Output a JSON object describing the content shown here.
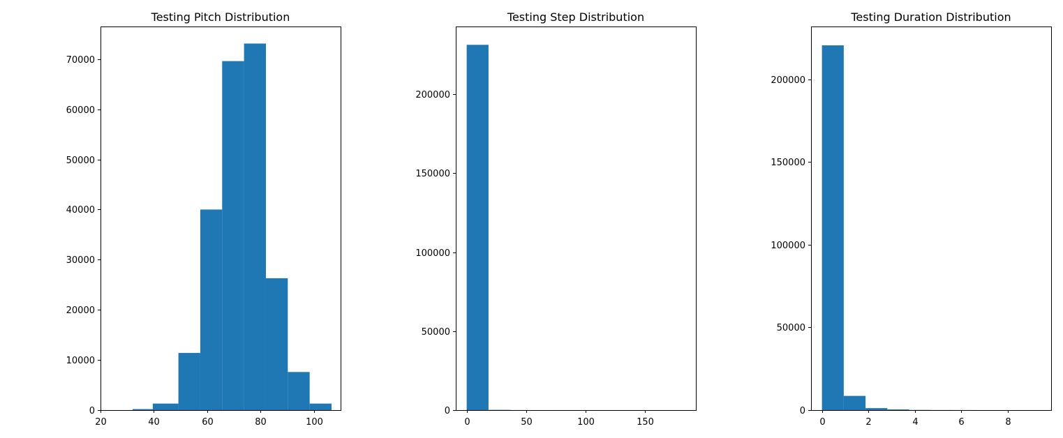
{
  "chart_data": [
    {
      "type": "bar",
      "title": "Testing Pitch Distribution",
      "xlabel": "",
      "ylabel": "",
      "xlim": [
        20,
        110
      ],
      "ylim": [
        0,
        76500
      ],
      "xticks": [
        20,
        40,
        60,
        80,
        100
      ],
      "yticks": [
        0,
        10000,
        20000,
        30000,
        40000,
        50000,
        60000,
        70000
      ],
      "bins": [
        {
          "x0": 32.0,
          "x1": 39.6,
          "value": 200
        },
        {
          "x0": 39.6,
          "x1": 49.2,
          "value": 1300
        },
        {
          "x0": 49.2,
          "x1": 57.4,
          "value": 11400
        },
        {
          "x0": 57.4,
          "x1": 65.6,
          "value": 40000
        },
        {
          "x0": 65.6,
          "x1": 73.8,
          "value": 69600
        },
        {
          "x0": 73.8,
          "x1": 82.0,
          "value": 73100
        },
        {
          "x0": 82.0,
          "x1": 90.2,
          "value": 26300
        },
        {
          "x0": 90.2,
          "x1": 98.4,
          "value": 7600
        },
        {
          "x0": 98.4,
          "x1": 106.6,
          "value": 1300
        }
      ],
      "color": "#1f77b4",
      "grid": false
    },
    {
      "type": "bar",
      "title": "Testing Step Distribution",
      "xlabel": "",
      "ylabel": "",
      "xlim": [
        -9.2,
        193.2
      ],
      "ylim": [
        0,
        243000
      ],
      "xticks": [
        0,
        50,
        100,
        150
      ],
      "yticks": [
        0,
        50000,
        100000,
        150000,
        200000
      ],
      "bins": [
        {
          "x0": 0,
          "x1": 18.4,
          "value": 231400
        },
        {
          "x0": 18.4,
          "x1": 36.8,
          "value": 150
        },
        {
          "x0": 36.8,
          "x1": 55.2,
          "value": 20
        },
        {
          "x0": 55.2,
          "x1": 73.6,
          "value": 5
        },
        {
          "x0": 73.6,
          "x1": 92.0,
          "value": 2
        },
        {
          "x0": 92.0,
          "x1": 110.4,
          "value": 1
        },
        {
          "x0": 110.4,
          "x1": 128.8,
          "value": 1
        },
        {
          "x0": 128.8,
          "x1": 147.2,
          "value": 0
        },
        {
          "x0": 147.2,
          "x1": 165.6,
          "value": 0
        },
        {
          "x0": 165.6,
          "x1": 184.0,
          "value": 1
        }
      ],
      "color": "#1f77b4",
      "grid": false
    },
    {
      "type": "bar",
      "title": "Testing Duration Distribution",
      "xlabel": "",
      "ylabel": "",
      "xlim": [
        -0.47,
        9.88
      ],
      "ylim": [
        0,
        232000
      ],
      "xticks": [
        0,
        2,
        4,
        6,
        8
      ],
      "yticks": [
        0,
        50000,
        100000,
        150000,
        200000
      ],
      "bins": [
        {
          "x0": 0.0,
          "x1": 0.94,
          "value": 220600
        },
        {
          "x0": 0.94,
          "x1": 1.88,
          "value": 8600
        },
        {
          "x0": 1.88,
          "x1": 2.82,
          "value": 1200
        },
        {
          "x0": 2.82,
          "x1": 3.76,
          "value": 400
        },
        {
          "x0": 3.76,
          "x1": 4.7,
          "value": 100
        },
        {
          "x0": 4.7,
          "x1": 5.64,
          "value": 40
        },
        {
          "x0": 5.64,
          "x1": 6.58,
          "value": 20
        },
        {
          "x0": 6.58,
          "x1": 7.52,
          "value": 10
        },
        {
          "x0": 7.52,
          "x1": 8.46,
          "value": 5
        },
        {
          "x0": 8.46,
          "x1": 9.4,
          "value": 3
        }
      ],
      "color": "#1f77b4",
      "grid": false
    }
  ]
}
